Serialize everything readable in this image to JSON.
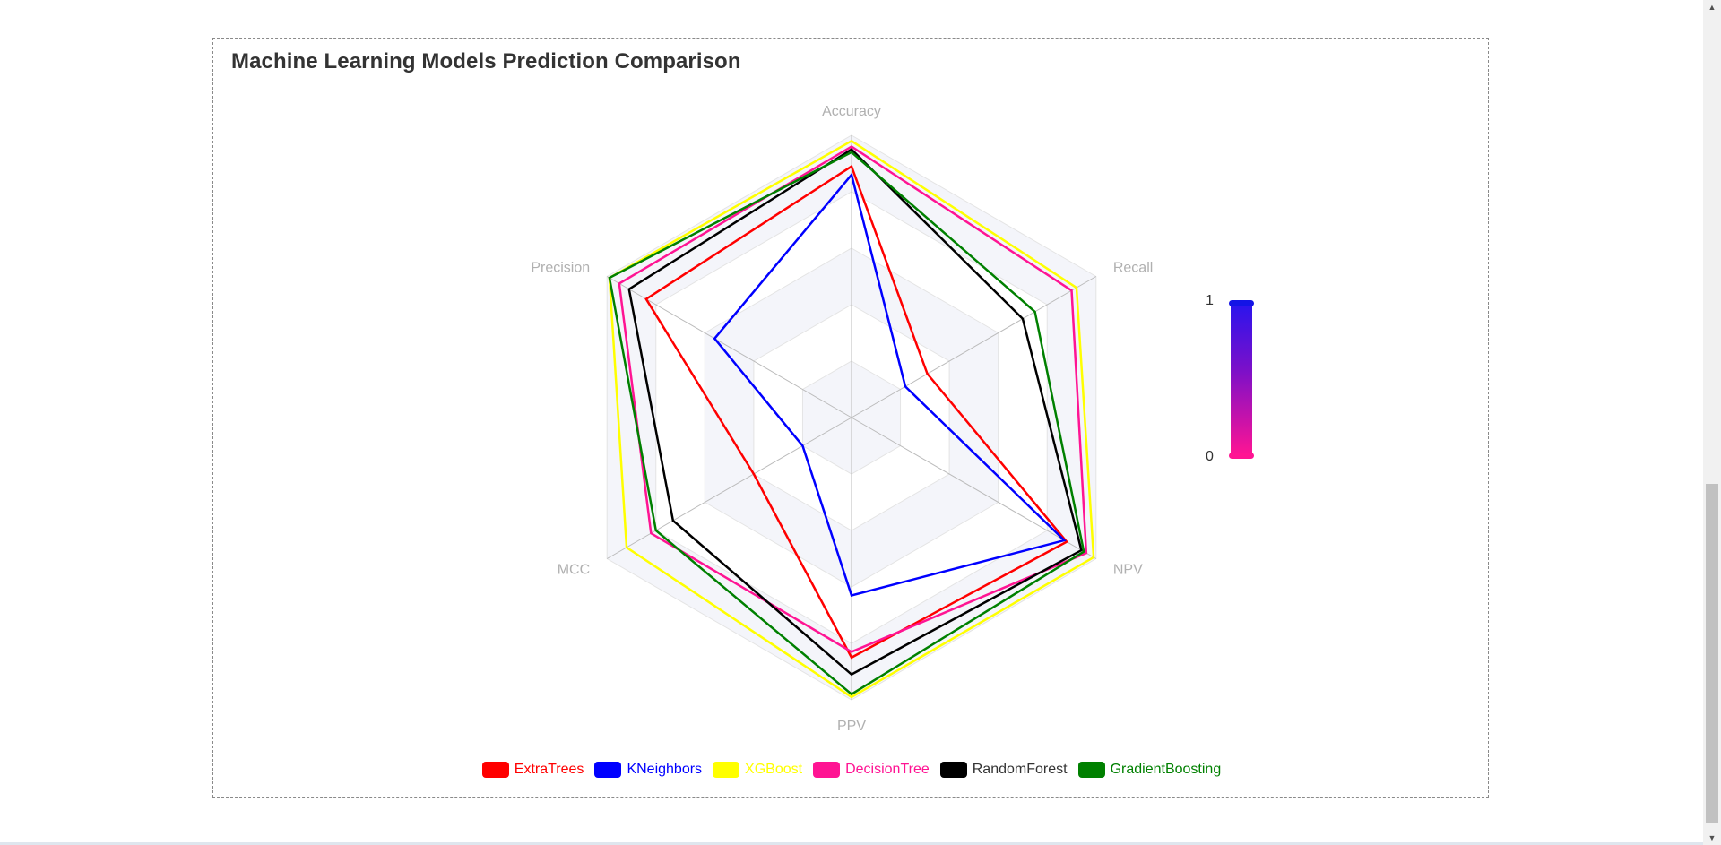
{
  "chart_data": {
    "type": "radar",
    "title": "Machine Learning Models Prediction Comparison",
    "indicators": [
      "Accuracy",
      "Recall",
      "NPV",
      "PPV",
      "MCC",
      "Precision"
    ],
    "max": 1,
    "split_number": 5,
    "series": [
      {
        "name": "ExtraTrees",
        "color": "#ff0000",
        "values": [
          0.89,
          0.31,
          0.88,
          0.85,
          0.4,
          0.84
        ]
      },
      {
        "name": "KNeighbors",
        "color": "#0000ff",
        "values": [
          0.86,
          0.22,
          0.87,
          0.63,
          0.2,
          0.56
        ]
      },
      {
        "name": "XGBoost",
        "color": "#ffff00",
        "values": [
          0.98,
          0.92,
          0.99,
          0.99,
          0.92,
          0.99
        ]
      },
      {
        "name": "DecisionTree",
        "color": "#ff1493",
        "values": [
          0.96,
          0.9,
          0.96,
          0.83,
          0.82,
          0.95
        ]
      },
      {
        "name": "RandomForest",
        "color": "#000000",
        "values": [
          0.95,
          0.7,
          0.94,
          0.91,
          0.73,
          0.91
        ]
      },
      {
        "name": "GradientBoosting",
        "color": "#008000",
        "values": [
          0.94,
          0.75,
          0.95,
          0.98,
          0.8,
          0.99
        ]
      }
    ],
    "legend_position": "bottom",
    "visual_map": {
      "max_label": "1",
      "min_label": "0",
      "colors": [
        "#1414e6",
        "#ff1493"
      ]
    }
  },
  "colors": {
    "title": "#333333",
    "axis_label": "#b0b0b0",
    "split_area": [
      "#ffffff",
      "#f4f5fa"
    ],
    "split_line": "#e4e4e4",
    "axis_line": "#bbbbbb"
  }
}
